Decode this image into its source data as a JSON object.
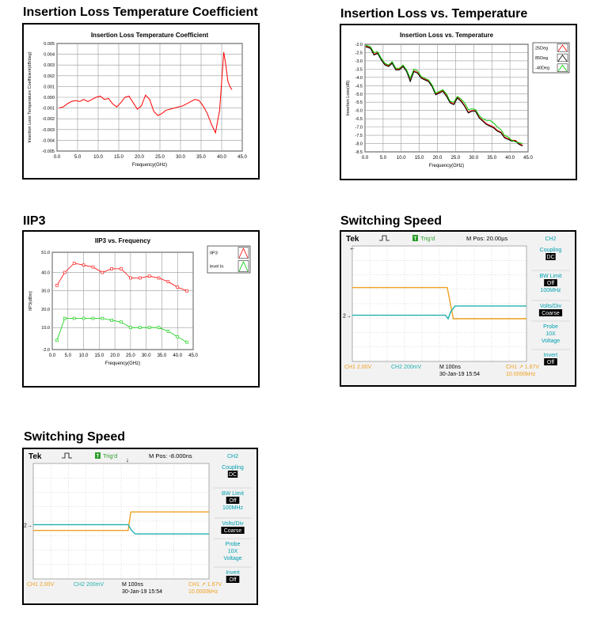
{
  "headings": {
    "ilt": "Insertion Loss Temperature Coefficient",
    "ilvt": "Insertion Loss vs. Temperature",
    "iip3": "IIP3",
    "sw1": "Switching Speed",
    "sw2": "Switching Speed"
  },
  "chart_data": [
    {
      "type": "line",
      "title": "Insertion Loss Temperature Coefficient",
      "xlabel": "Frequency(GHz)",
      "ylabel": "Insertion Loss Temperature Coefficient(dB/deg)",
      "xlim": [
        0,
        45
      ],
      "ylim": [
        -0.005,
        0.005
      ],
      "xticks": [
        "0.0",
        "5.0",
        "10.0",
        "15.0",
        "20.0",
        "25.0",
        "30.0",
        "35.0",
        "40.0",
        "45.0"
      ],
      "yticks": [
        "0.005",
        "0.004",
        "0.003",
        "0.002",
        "0.001",
        "0.000",
        "-0.001",
        "-0.002",
        "-0.003",
        "-0.004",
        "-0.005"
      ],
      "grid": true,
      "series": [
        {
          "color": "#ff0000",
          "x": [
            0.5,
            1.5,
            2.5,
            3.5,
            4.5,
            5.5,
            6.5,
            7.5,
            8.5,
            9.5,
            10.5,
            11.5,
            12.5,
            13.5,
            14.5,
            15.5,
            16.5,
            17.5,
            18.5,
            19.5,
            20.5,
            21.5,
            22.5,
            23.5,
            24.5,
            25.5,
            26.5,
            27.5,
            28.5,
            29.5,
            30.5,
            31.5,
            32.5,
            33.5,
            34.5,
            35.5,
            36.5,
            37.5,
            38.5,
            39.5,
            40.0,
            40.5,
            41.0,
            41.5,
            42.0,
            42.5
          ],
          "y": [
            -0.001,
            -0.0009,
            -0.0006,
            -0.0004,
            -0.0003,
            -0.0004,
            -0.0002,
            -0.0004,
            -0.0002,
            0.0,
            0.0001,
            -0.0002,
            -0.0001,
            -0.0006,
            -0.0009,
            -0.0005,
            0.0,
            0.0001,
            -0.0005,
            -0.0011,
            -0.0008,
            0.0002,
            -0.0002,
            -0.0013,
            -0.0017,
            -0.0015,
            -0.0012,
            -0.0011,
            -0.001,
            -0.0009,
            -0.0008,
            -0.0006,
            -0.0004,
            -0.0002,
            -0.0003,
            -0.0008,
            -0.0015,
            -0.0025,
            -0.0033,
            -0.0012,
            0.0015,
            0.0042,
            0.003,
            0.0015,
            0.001,
            0.0007
          ]
        }
      ]
    },
    {
      "type": "line",
      "title": "Insertion Loss vs. Temperature",
      "xlabel": "Frequency(GHz)",
      "ylabel": "Insertion Loss(dB)",
      "xlim": [
        0,
        45
      ],
      "ylim": [
        -8.5,
        -2.0
      ],
      "xticks": [
        "0.0",
        "5.0",
        "10.0",
        "15.0",
        "20.0",
        "25.0",
        "30.0",
        "35.0",
        "40.0",
        "45.0"
      ],
      "yticks": [
        "-2.0",
        "-2.5",
        "-3.0",
        "-3.5",
        "-4.0",
        "-4.5",
        "-5.0",
        "-5.5",
        "-6.0",
        "-6.5",
        "-7.0",
        "-7.5",
        "-8.0",
        "-8.5"
      ],
      "grid": true,
      "legend": "top-right",
      "x": [
        0.2,
        1.5,
        2.5,
        3.5,
        4.5,
        5.5,
        6.5,
        7.5,
        8.5,
        9.5,
        10.5,
        11.5,
        12.5,
        13.5,
        14.5,
        15.5,
        16.5,
        17.5,
        18.5,
        19.5,
        20.5,
        21.5,
        22.5,
        23.5,
        24.5,
        25.5,
        26.5,
        27.5,
        28.5,
        29.5,
        30.5,
        31.5,
        32.5,
        33.5,
        34.5,
        35.5,
        36.5,
        37.5,
        38.5,
        39.5,
        40.5,
        41.5,
        42.5,
        43.5
      ],
      "series": [
        {
          "name": "25Deg",
          "color": "#ff0000",
          "y": [
            -2.1,
            -2.2,
            -2.6,
            -2.5,
            -2.9,
            -3.2,
            -3.3,
            -3.1,
            -3.5,
            -3.5,
            -3.3,
            -3.6,
            -4.2,
            -3.6,
            -3.7,
            -4.0,
            -4.1,
            -4.2,
            -4.5,
            -5.0,
            -4.9,
            -4.8,
            -5.1,
            -5.5,
            -5.6,
            -5.2,
            -5.4,
            -5.7,
            -6.1,
            -6.0,
            -6.0,
            -6.4,
            -6.6,
            -6.8,
            -6.9,
            -7.0,
            -7.2,
            -7.3,
            -7.6,
            -7.7,
            -7.8,
            -7.8,
            -8.0,
            -8.1
          ]
        },
        {
          "name": "85Deg",
          "color": "#000000",
          "y": [
            -2.15,
            -2.25,
            -2.65,
            -2.55,
            -2.95,
            -3.25,
            -3.35,
            -3.15,
            -3.55,
            -3.55,
            -3.35,
            -3.65,
            -4.25,
            -3.65,
            -3.75,
            -4.05,
            -4.15,
            -4.25,
            -4.55,
            -5.05,
            -4.95,
            -4.85,
            -5.15,
            -5.55,
            -5.65,
            -5.25,
            -5.45,
            -5.75,
            -6.15,
            -6.05,
            -6.05,
            -6.45,
            -6.65,
            -6.85,
            -6.95,
            -7.05,
            -7.25,
            -7.35,
            -7.65,
            -7.75,
            -7.85,
            -7.85,
            -8.05,
            -8.15
          ]
        },
        {
          "name": "-40Deg",
          "color": "#00cc00",
          "y": [
            -2.05,
            -2.15,
            -2.5,
            -2.45,
            -2.85,
            -3.15,
            -3.25,
            -3.05,
            -3.45,
            -3.45,
            -3.25,
            -3.55,
            -4.05,
            -3.5,
            -3.6,
            -3.95,
            -4.05,
            -4.15,
            -4.45,
            -4.95,
            -4.85,
            -4.75,
            -5.0,
            -5.45,
            -5.5,
            -5.15,
            -5.3,
            -5.55,
            -5.95,
            -5.9,
            -5.95,
            -6.3,
            -6.5,
            -6.6,
            -6.6,
            -6.75,
            -7.0,
            -7.15,
            -7.5,
            -7.6,
            -7.8,
            -7.9,
            -7.95,
            -8.0
          ]
        }
      ]
    },
    {
      "type": "line",
      "title": "IIP3 vs. Frequency",
      "xlabel": "Frequency(GHz)",
      "ylabel": "IIP3(dBm)",
      "xlim": [
        0,
        45
      ],
      "ylim": [
        -2,
        51
      ],
      "xticks": [
        "0.0",
        "5.0",
        "10.0",
        "15.0",
        "20.0",
        "25.0",
        "30.0",
        "35.0",
        "40.0",
        "45.0"
      ],
      "yticks": [
        "51.0",
        "40.0",
        "30.0",
        "20.0",
        "10.0",
        "-2.0"
      ],
      "ytickvalues": [
        51,
        40,
        30,
        20,
        10,
        -2
      ],
      "grid": true,
      "legend": "top-right",
      "x": [
        1.5,
        4.0,
        7.0,
        10.0,
        13.0,
        16.0,
        19.0,
        22.0,
        25.0,
        28.0,
        31.0,
        34.0,
        37.0,
        40.0,
        43.0
      ],
      "series": [
        {
          "name": "IIP3",
          "color": "#ff0000",
          "y": [
            33,
            40,
            45,
            44,
            43,
            40,
            42,
            42,
            37,
            37,
            38,
            37,
            35,
            32,
            30
          ]
        },
        {
          "name": "level In",
          "color": "#00cc00",
          "y": [
            3,
            15,
            15,
            15,
            15,
            15,
            14,
            13,
            10,
            10,
            10,
            10,
            8,
            5,
            2
          ]
        }
      ]
    }
  ],
  "scopes": [
    {
      "brand": "Tek",
      "trig": "Trig'd",
      "trig_icon": "T",
      "mpos": "M Pos: 20.00µs",
      "side": [
        "CH2",
        "Coupling",
        "DC",
        "BW Limit",
        "Off",
        "100MHz",
        "Volts/Div",
        "Coarse",
        "Probe",
        "10X",
        "Voltage",
        "Invert",
        "Off"
      ],
      "ch1": "CH1  2.00V",
      "ch2": "CH2  200mV",
      "mtime": "M 100ns",
      "date": "30-Jan-19 15:54",
      "trigsrc": "CH1 ↗ 1.67V",
      "freq": "10.0000kHz",
      "marker1": "1→",
      "marker2": "2→"
    },
    {
      "brand": "Tek",
      "trig": "Trig'd",
      "trig_icon": "T",
      "mpos": "M Pos: -8.000ns",
      "side": [
        "CH2",
        "Coupling",
        "DC",
        "BW Limit",
        "Off",
        "100MHz",
        "Volts/Div",
        "Coarse",
        "Probe",
        "10X",
        "Voltage",
        "Invert",
        "Off"
      ],
      "ch1": "CH1  2.00V",
      "ch2": "CH2  200mV",
      "mtime": "M 100ns",
      "date": "30-Jan-19 15:54",
      "trigsrc": "CH1 ↗ 1.67V",
      "freq": "10.0000kHz",
      "marker1": "1→",
      "marker2": "2→"
    }
  ],
  "colors": {
    "ch1": "#f0a020",
    "ch2": "#20b0b0",
    "label": "#00a0b0"
  }
}
